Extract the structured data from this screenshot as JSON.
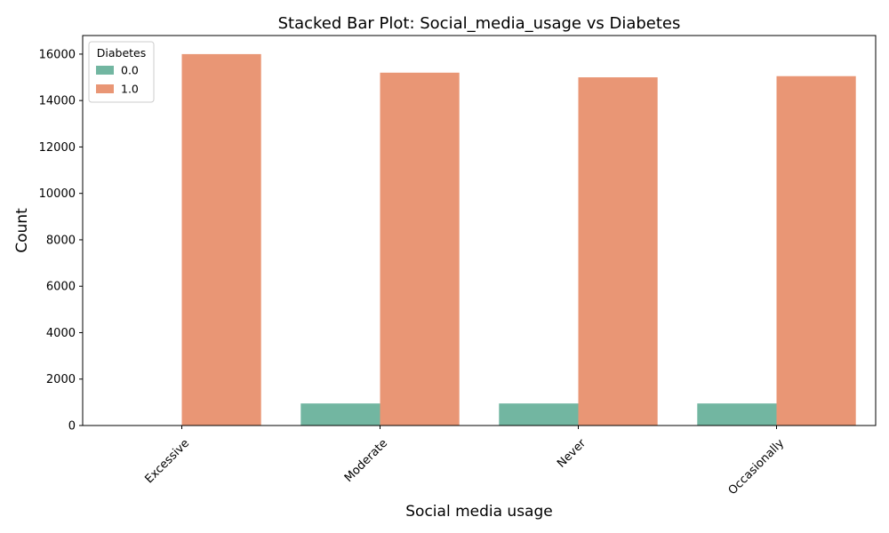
{
  "chart_data": {
    "type": "bar",
    "title": "Stacked Bar Plot: Social_media_usage vs Diabetes",
    "xlabel": "Social media usage",
    "ylabel": "Count",
    "categories": [
      "Excessive",
      "Moderate",
      "Never",
      "Occasionally"
    ],
    "series": [
      {
        "name": "0.0",
        "color": "#72b6a1",
        "values": [
          0,
          950,
          950,
          950
        ]
      },
      {
        "name": "1.0",
        "color": "#e99675",
        "values": [
          16000,
          15200,
          15000,
          15050
        ]
      }
    ],
    "ylim": [
      0,
      16800
    ],
    "yticks": [
      "0",
      "2000",
      "4000",
      "6000",
      "8000",
      "10000",
      "12000",
      "14000",
      "16000"
    ],
    "legend": {
      "title": "Diabetes",
      "placement": "top-left"
    },
    "grid": false
  }
}
